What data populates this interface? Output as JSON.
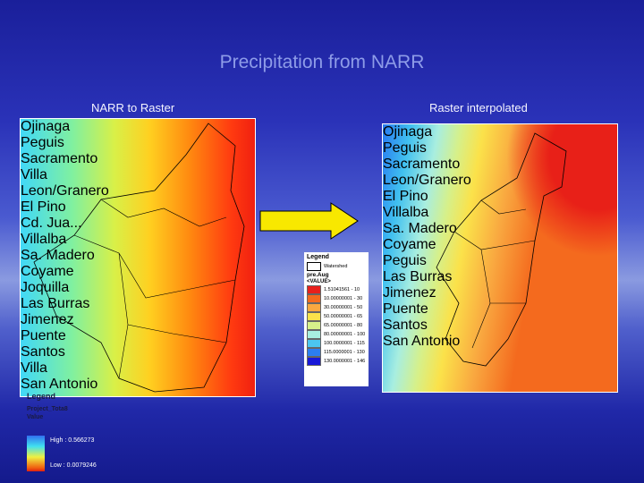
{
  "title": "Precipitation from NARR",
  "left_panel": {
    "caption": "NARR to Raster",
    "labels": [
      "Ojinaga",
      "Peguis",
      "Sacramento",
      "Villa",
      "Leon/Granero",
      "El Pino",
      "Cd. Jua...",
      "Villalba",
      "Sa. Madero",
      "Coyame",
      "Joquilla",
      "Las Burras",
      "Jimenez",
      "Puente",
      "Santos",
      "Villa",
      "San Antonio"
    ],
    "legend": {
      "title": "Legend",
      "layer": "Project_Tota8",
      "field": "Value",
      "high": "High : 0.566273",
      "low": "Low : 0.0079246"
    }
  },
  "right_panel": {
    "caption": "Raster interpolated",
    "labels": [
      "Ojinaga",
      "Peguis",
      "Sacramento",
      "Leon/Granero",
      "El Pino",
      "Villalba",
      "Sa. Madero",
      "Coyame",
      "Peguis",
      "Las Burras",
      "Jimenez",
      "Puente",
      "Santos",
      "San Antonio"
    ]
  },
  "legend": {
    "title": "Legend",
    "watershed": "Watershed",
    "layer": "pre.Aug",
    "field": "<VALUE>",
    "classes": [
      {
        "label": "1.51041561 - 10",
        "color": "#e8201c"
      },
      {
        "label": "10.00000001 - 30",
        "color": "#f46a1e"
      },
      {
        "label": "30.00000001 - 50",
        "color": "#f9a840"
      },
      {
        "label": "50.00000001 - 65",
        "color": "#fbe24a"
      },
      {
        "label": "65.00000001 - 80",
        "color": "#d6f08a"
      },
      {
        "label": "80.00000001 - 100",
        "color": "#a8eee0"
      },
      {
        "label": "100.0000001 - 115",
        "color": "#4cc6f0"
      },
      {
        "label": "115.0000001 - 130",
        "color": "#2c7ef0"
      },
      {
        "label": "130.0000001 - 146",
        "color": "#1818d8"
      }
    ]
  }
}
